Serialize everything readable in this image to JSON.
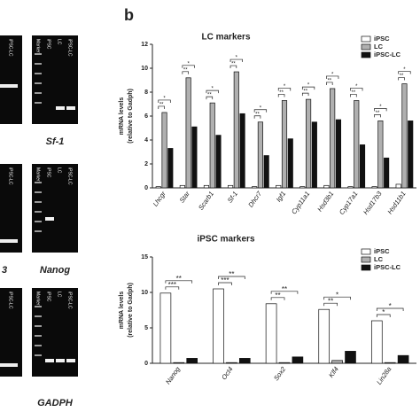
{
  "panel_label": "b",
  "gels": {
    "lanes": [
      "Marker",
      "iPSC",
      "LC",
      "iPSC-LC"
    ],
    "left_captions": [
      "3"
    ],
    "captions": [
      "Sf-1",
      "Nanog",
      "GADPH"
    ]
  },
  "chart_data": [
    {
      "type": "bar",
      "title": "LC markers",
      "y_label": [
        "mRNA levels",
        "(relative to Gadph)"
      ],
      "categories": [
        "Lhcgr",
        "Star",
        "Scarb1",
        "Sf-1",
        "Dhcr7",
        "Igf1",
        "Cyp11a1",
        "Hsd3b1",
        "Cyp17a1",
        "Hsd17b3",
        "Hsd11b1"
      ],
      "series": [
        {
          "name": "iPSC",
          "color": "#ffffff",
          "values": [
            0.1,
            0.2,
            0.2,
            0.2,
            0.1,
            0.2,
            0.1,
            0.2,
            0.1,
            0.1,
            0.3
          ]
        },
        {
          "name": "LC",
          "color": "#b0b0b0",
          "values": [
            6.3,
            9.2,
            7.1,
            9.7,
            5.5,
            7.3,
            7.4,
            8.3,
            7.3,
            5.6,
            8.7
          ]
        },
        {
          "name": "iPSC-LC",
          "color": "#111111",
          "values": [
            3.3,
            5.1,
            4.4,
            6.2,
            2.7,
            4.1,
            5.5,
            5.7,
            3.6,
            2.5,
            5.6
          ]
        }
      ],
      "significance": [
        [
          "*",
          "**"
        ],
        [
          "*",
          "**"
        ],
        [
          "*",
          "**"
        ],
        [
          "*",
          "**"
        ],
        [
          "*",
          "**"
        ],
        [
          "*",
          "**"
        ],
        [
          "*",
          "**"
        ],
        [
          "*",
          "**"
        ],
        [
          "*",
          "**"
        ],
        [
          "*",
          "**"
        ],
        [
          "*",
          "**"
        ]
      ],
      "ylim": [
        0,
        12
      ],
      "yticks": [
        0,
        2,
        4,
        6,
        8,
        10,
        12
      ],
      "legend": "upper right"
    },
    {
      "type": "bar",
      "title": "iPSC markers",
      "y_label": [
        "mRNA levels",
        "(relative to Gadph)"
      ],
      "categories": [
        "Nanog",
        "Oct4",
        "Sox2",
        "Klf4",
        "Lin28a"
      ],
      "series": [
        {
          "name": "iPSC",
          "color": "#ffffff",
          "values": [
            9.9,
            10.5,
            8.4,
            7.6,
            6.0
          ]
        },
        {
          "name": "LC",
          "color": "#b0b0b0",
          "values": [
            0.1,
            0.1,
            0.1,
            0.4,
            0.1
          ]
        },
        {
          "name": "iPSC-LC",
          "color": "#111111",
          "values": [
            0.7,
            0.7,
            0.9,
            1.7,
            1.1
          ]
        }
      ],
      "significance": [
        [
          "**",
          "***"
        ],
        [
          "**",
          "***"
        ],
        [
          "**",
          "**"
        ],
        [
          "*",
          "**"
        ],
        [
          "*",
          "*"
        ]
      ],
      "ylim": [
        0,
        15
      ],
      "yticks": [
        0,
        5,
        10,
        15
      ],
      "legend": "upper right"
    }
  ]
}
